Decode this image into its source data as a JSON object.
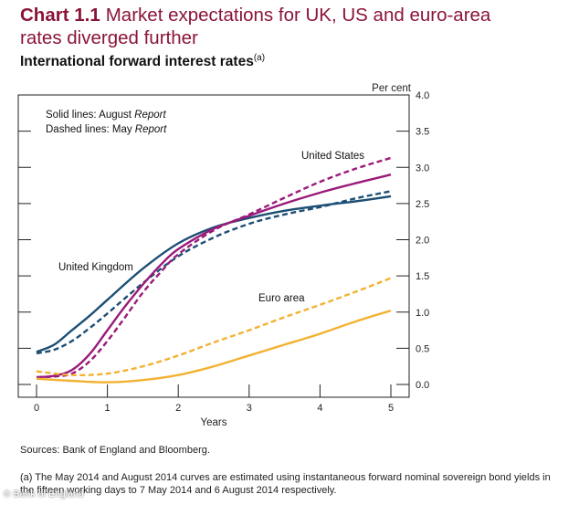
{
  "header": {
    "chart_number": "Chart 1.1",
    "title_line1": "Market expectations for UK, US and euro-area",
    "title_line2": "rates diverged further",
    "subtitle": "International forward interest rates",
    "subtitle_note": "(a)"
  },
  "legend_note": {
    "solid_prefix": "Solid lines:  August ",
    "solid_italic": "Report",
    "dashed_prefix": "Dashed lines:  May ",
    "dashed_italic": "Report"
  },
  "footer": {
    "sources": "Sources:  Bank of England and Bloomberg.",
    "footnote": "(a)  The May 2014 and August 2014 curves are estimated using instantaneous forward nominal sovereign bond yields in the fifteen working days to 7 May 2014 and 6 August 2014 respectively.",
    "watermark": "© Bank of England"
  },
  "colors": {
    "uk": "#1d4e74",
    "us": "#9a1a7a",
    "euro": "#f2b233",
    "axis": "#222222"
  },
  "chart_data": {
    "type": "line",
    "xlabel": "Years",
    "ylabel": "Per cent",
    "xlim": [
      0,
      5
    ],
    "ylim": [
      0,
      4
    ],
    "x_ticks": [
      0,
      1,
      2,
      3,
      4,
      5
    ],
    "y_ticks": [
      "0.0",
      "0.5",
      "1.0",
      "1.5",
      "2.0",
      "2.5",
      "3.0",
      "3.5",
      "4.0"
    ],
    "labels": {
      "uk": "United Kingdom",
      "us": "United States",
      "euro": "Euro area"
    },
    "series": [
      {
        "key": "uk-aug",
        "region": "uk",
        "style": "solid",
        "x": [
          0,
          0.25,
          0.5,
          0.75,
          1,
          1.5,
          2,
          2.5,
          3,
          3.5,
          4,
          4.5,
          5
        ],
        "y": [
          0.45,
          0.55,
          0.75,
          0.95,
          1.17,
          1.6,
          1.95,
          2.17,
          2.3,
          2.4,
          2.47,
          2.53,
          2.6
        ]
      },
      {
        "key": "uk-may",
        "region": "uk",
        "style": "dashed",
        "x": [
          0,
          0.25,
          0.5,
          0.75,
          1,
          1.5,
          2,
          2.5,
          3,
          3.5,
          4,
          4.5,
          5
        ],
        "y": [
          0.43,
          0.48,
          0.6,
          0.78,
          0.98,
          1.4,
          1.77,
          2.03,
          2.22,
          2.35,
          2.45,
          2.57,
          2.67
        ]
      },
      {
        "key": "us-aug",
        "region": "us",
        "style": "solid",
        "x": [
          0,
          0.25,
          0.5,
          0.75,
          1,
          1.25,
          1.5,
          1.75,
          2,
          2.5,
          3,
          3.5,
          4,
          4.5,
          5
        ],
        "y": [
          0.1,
          0.12,
          0.2,
          0.42,
          0.75,
          1.08,
          1.38,
          1.65,
          1.87,
          2.15,
          2.33,
          2.5,
          2.65,
          2.78,
          2.9
        ]
      },
      {
        "key": "us-may",
        "region": "us",
        "style": "dashed",
        "x": [
          0,
          0.25,
          0.5,
          0.75,
          1,
          1.25,
          1.5,
          1.75,
          2,
          2.5,
          3,
          3.5,
          4,
          4.5,
          5
        ],
        "y": [
          0.1,
          0.11,
          0.15,
          0.32,
          0.6,
          0.93,
          1.27,
          1.55,
          1.8,
          2.13,
          2.35,
          2.58,
          2.8,
          2.98,
          3.13
        ]
      },
      {
        "key": "euro-aug",
        "region": "euro",
        "style": "solid",
        "x": [
          0,
          0.5,
          1,
          1.5,
          2,
          2.5,
          3,
          3.5,
          4,
          4.5,
          5
        ],
        "y": [
          0.08,
          0.05,
          0.03,
          0.06,
          0.13,
          0.25,
          0.4,
          0.55,
          0.7,
          0.87,
          1.02
        ]
      },
      {
        "key": "euro-may",
        "region": "euro",
        "style": "dashed",
        "x": [
          0,
          0.5,
          1,
          1.5,
          2,
          2.5,
          3,
          3.5,
          4,
          4.5,
          5
        ],
        "y": [
          0.18,
          0.13,
          0.15,
          0.25,
          0.4,
          0.58,
          0.75,
          0.93,
          1.1,
          1.28,
          1.47
        ]
      }
    ]
  }
}
